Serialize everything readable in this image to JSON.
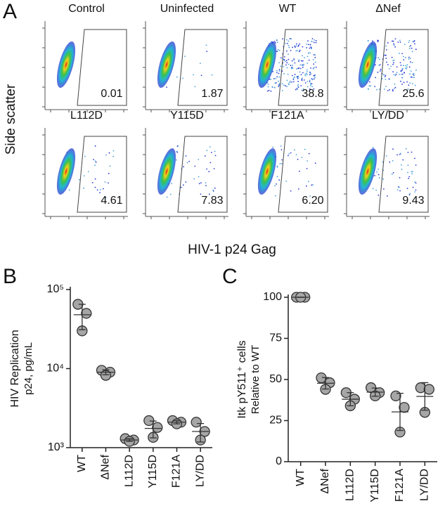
{
  "chart_data": [
    {
      "type": "flow",
      "panel": "A",
      "titles": [
        "Control",
        "Uninfected",
        "WT",
        "ΔNef",
        "L112D",
        "Y115D",
        "F121A",
        "LY/DD"
      ],
      "values": [
        0.01,
        1.87,
        38.8,
        25.6,
        4.61,
        7.83,
        6.2,
        9.43
      ],
      "value_labels": [
        "0.01",
        "1.87",
        "38.8",
        "25.6",
        "4.61",
        "7.83",
        "6.20",
        "9.43"
      ],
      "x_label": "HIV-1 p24 Gag",
      "y_label": "Side scatter"
    },
    {
      "type": "dot",
      "panel": "B",
      "categories": [
        "WT",
        "ΔNef",
        "L112D",
        "Y115D",
        "F121A",
        "LY/DD"
      ],
      "replicates": [
        [
          65000,
          50000,
          30000
        ],
        [
          9500,
          9000,
          8200
        ],
        [
          1300,
          1250,
          1200
        ],
        [
          2200,
          1800,
          1350
        ],
        [
          2200,
          2100,
          2000
        ],
        [
          2100,
          1600,
          1250
        ]
      ],
      "means": [
        48000,
        9000,
        1250,
        1750,
        2100,
        1600
      ],
      "errors": [
        17000,
        650,
        50,
        420,
        100,
        420
      ],
      "log_y": true,
      "ylim": [
        1000,
        100000
      ],
      "yticks": [
        {
          "value": 1000,
          "label": "10³"
        },
        {
          "value": 10000,
          "label": "10⁴"
        },
        {
          "value": 100000,
          "label": "10⁵"
        }
      ],
      "y_label": [
        "HIV Replication",
        "p24, pg/mL"
      ],
      "color": "#a6a6a6"
    },
    {
      "type": "dot",
      "panel": "C",
      "categories": [
        "WT",
        "ΔNef",
        "L112D",
        "Y115D",
        "F121A",
        "LY/DD"
      ],
      "replicates": [
        [
          100,
          100,
          100
        ],
        [
          51,
          48,
          44
        ],
        [
          42,
          38,
          34
        ],
        [
          45,
          42,
          40
        ],
        [
          40,
          33,
          18
        ],
        [
          45,
          44,
          30
        ]
      ],
      "means": [
        100,
        47.7,
        38,
        42.3,
        30.3,
        39.7
      ],
      "errors": [
        0,
        3.5,
        4,
        2.5,
        11.3,
        8.4
      ],
      "log_y": false,
      "ylim": [
        0,
        100
      ],
      "yticks": [
        0,
        25,
        50,
        75,
        100
      ],
      "y_label": [
        "Itk pY511⁺ cells",
        "Relative to WT"
      ],
      "color": "#a6a6a6"
    }
  ]
}
